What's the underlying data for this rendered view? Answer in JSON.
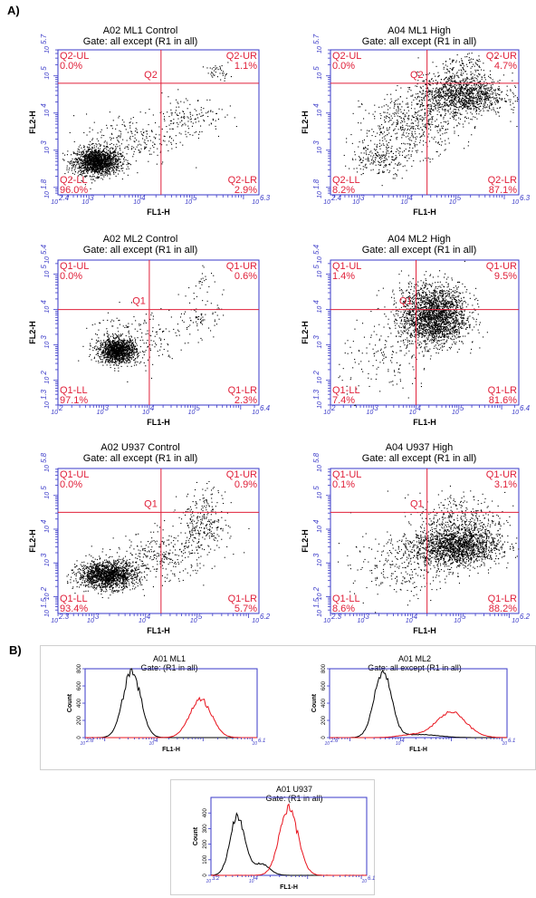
{
  "panel_a_label": "A)",
  "panel_b_label": "B)",
  "colors": {
    "axis": "#3a3ac8",
    "quadrant": "#e0203a",
    "dots": "#000000",
    "hist_red": "#e8141e",
    "hist_black": "#000000"
  },
  "chart_data": [
    {
      "type": "scatter",
      "id": "a02-ml1",
      "title": "A02 ML1 Control",
      "subtitle": "Gate: all except (R1 in all)",
      "xlabel": "FL1-H",
      "ylabel": "FL2-H",
      "xlim": [
        2.4,
        6.3
      ],
      "ylim": [
        1.8,
        5.7
      ],
      "x_ticks": [
        {
          "v": 2.4,
          "t": "2.4"
        },
        {
          "v": 3,
          "t": "3"
        },
        {
          "v": 4,
          "t": "4"
        },
        {
          "v": 5,
          "t": "5"
        },
        {
          "v": 6.3,
          "t": "6.3"
        }
      ],
      "y_ticks": [
        {
          "v": 1.8,
          "t": "1.8"
        },
        {
          "v": 3,
          "t": "3"
        },
        {
          "v": 4,
          "t": "4"
        },
        {
          "v": 5,
          "t": "5"
        },
        {
          "v": 5.7,
          "t": "5.7"
        }
      ],
      "gate": {
        "name": "Q2",
        "x": 4.4,
        "y": 4.8
      },
      "quadrants": {
        "UL": [
          "Q2-UL",
          "0.0%"
        ],
        "UR": [
          "Q2-UR",
          "1.1%"
        ],
        "LL": [
          "Q2-LL",
          "96.0%"
        ],
        "LR": [
          "Q2-LR",
          "2.9%"
        ]
      },
      "populations": [
        {
          "cx": 3.15,
          "cy": 2.7,
          "sx": 0.22,
          "sy": 0.18,
          "n": 1600
        },
        {
          "cx": 3.8,
          "cy": 3.3,
          "sx": 0.45,
          "sy": 0.35,
          "n": 220
        },
        {
          "cx": 4.9,
          "cy": 3.9,
          "sx": 0.35,
          "sy": 0.3,
          "n": 160
        },
        {
          "cx": 5.5,
          "cy": 5.1,
          "sx": 0.12,
          "sy": 0.1,
          "n": 40
        }
      ]
    },
    {
      "type": "scatter",
      "id": "a04-ml1",
      "title": "A04 ML1 High",
      "subtitle": "Gate: all except (R1 in all)",
      "xlabel": "FL1-H",
      "ylabel": "FL2-H",
      "xlim": [
        2.4,
        6.3
      ],
      "ylim": [
        1.8,
        5.7
      ],
      "x_ticks": [
        {
          "v": 2.4,
          "t": "2.4"
        },
        {
          "v": 3,
          "t": "3"
        },
        {
          "v": 4,
          "t": "4"
        },
        {
          "v": 5,
          "t": "5"
        },
        {
          "v": 6.3,
          "t": "6.3"
        }
      ],
      "y_ticks": [
        {
          "v": 1.8,
          "t": "1.8"
        },
        {
          "v": 3,
          "t": "3"
        },
        {
          "v": 4,
          "t": "4"
        },
        {
          "v": 5,
          "t": "5"
        },
        {
          "v": 5.7,
          "t": "5.7"
        }
      ],
      "gate": {
        "name": "Q2",
        "x": 4.4,
        "y": 4.8
      },
      "quadrants": {
        "UL": [
          "Q2-UL",
          "0.0%"
        ],
        "UR": [
          "Q2-UR",
          "4.7%"
        ],
        "LL": [
          "Q2-LL",
          "8.2%"
        ],
        "LR": [
          "Q2-LR",
          "87.1%"
        ]
      },
      "populations": [
        {
          "cx": 5.1,
          "cy": 4.5,
          "sx": 0.45,
          "sy": 0.28,
          "n": 1300
        },
        {
          "cx": 4.1,
          "cy": 3.7,
          "sx": 0.5,
          "sy": 0.4,
          "n": 500
        },
        {
          "cx": 3.4,
          "cy": 2.8,
          "sx": 0.3,
          "sy": 0.25,
          "n": 220
        },
        {
          "cx": 5.1,
          "cy": 5.3,
          "sx": 0.3,
          "sy": 0.15,
          "n": 90
        }
      ]
    },
    {
      "type": "scatter",
      "id": "a02-ml2",
      "title": "A02 ML2 Control",
      "subtitle": "Gate: all except (R1 in all)",
      "xlabel": "FL1-H",
      "ylabel": "FL2-H",
      "xlim": [
        2,
        6.4
      ],
      "ylim": [
        1.3,
        5.4
      ],
      "x_ticks": [
        {
          "v": 2,
          "t": "2"
        },
        {
          "v": 3,
          "t": "3"
        },
        {
          "v": 4,
          "t": "4"
        },
        {
          "v": 5,
          "t": "5"
        },
        {
          "v": 6.4,
          "t": "6.4"
        }
      ],
      "y_ticks": [
        {
          "v": 1.3,
          "t": "1.3"
        },
        {
          "v": 2,
          "t": "2"
        },
        {
          "v": 3,
          "t": "3"
        },
        {
          "v": 4,
          "t": "4"
        },
        {
          "v": 5,
          "t": "5"
        },
        {
          "v": 5.4,
          "t": "5.4"
        }
      ],
      "gate": {
        "name": "Q1",
        "x": 4.0,
        "y": 4.0
      },
      "quadrants": {
        "UL": [
          "Q1-UL",
          "0.0%"
        ],
        "UR": [
          "Q1-UR",
          "0.6%"
        ],
        "LL": [
          "Q1-LL",
          "97.1%"
        ],
        "LR": [
          "Q1-LR",
          "2.3%"
        ]
      },
      "populations": [
        {
          "cx": 3.3,
          "cy": 2.85,
          "sx": 0.2,
          "sy": 0.17,
          "n": 1300
        },
        {
          "cx": 3.7,
          "cy": 3.2,
          "sx": 0.55,
          "sy": 0.45,
          "n": 200
        },
        {
          "cx": 5.1,
          "cy": 3.8,
          "sx": 0.2,
          "sy": 0.2,
          "n": 70
        },
        {
          "cx": 5.2,
          "cy": 4.8,
          "sx": 0.2,
          "sy": 0.2,
          "n": 25
        }
      ]
    },
    {
      "type": "scatter",
      "id": "a04-ml2",
      "title": "A04 ML2 High",
      "subtitle": "Gate: all except (R1 in all)",
      "xlabel": "FL1-H",
      "ylabel": "FL2-H",
      "xlim": [
        2,
        6.4
      ],
      "ylim": [
        1.3,
        5.4
      ],
      "x_ticks": [
        {
          "v": 2,
          "t": "2"
        },
        {
          "v": 3,
          "t": "3"
        },
        {
          "v": 4,
          "t": "4"
        },
        {
          "v": 5,
          "t": "5"
        },
        {
          "v": 6.4,
          "t": "6.4"
        }
      ],
      "y_ticks": [
        {
          "v": 1.3,
          "t": "1.3"
        },
        {
          "v": 2,
          "t": "2"
        },
        {
          "v": 3,
          "t": "3"
        },
        {
          "v": 4,
          "t": "4"
        },
        {
          "v": 5,
          "t": "5"
        },
        {
          "v": 5.4,
          "t": "5.4"
        }
      ],
      "gate": {
        "name": "Q1",
        "x": 4.0,
        "y": 4.0
      },
      "quadrants": {
        "UL": [
          "Q1-UL",
          "1.4%"
        ],
        "UR": [
          "Q1-UR",
          "9.5%"
        ],
        "LL": [
          "Q1-LL",
          "7.4%"
        ],
        "LR": [
          "Q1-LR",
          "81.6%"
        ]
      },
      "populations": [
        {
          "cx": 4.4,
          "cy": 3.75,
          "sx": 0.38,
          "sy": 0.38,
          "n": 1900
        },
        {
          "cx": 4.4,
          "cy": 4.35,
          "sx": 0.4,
          "sy": 0.3,
          "n": 350
        },
        {
          "cx": 3.3,
          "cy": 2.6,
          "sx": 0.55,
          "sy": 0.55,
          "n": 160
        }
      ]
    },
    {
      "type": "scatter",
      "id": "a02-u937",
      "title": "A02 U937 Control",
      "subtitle": "Gate: all except (R1 in all)",
      "xlabel": "FL1-H",
      "ylabel": "FL2-H",
      "xlim": [
        2.3,
        6.2
      ],
      "ylim": [
        1.5,
        5.8
      ],
      "x_ticks": [
        {
          "v": 2.3,
          "t": "2.3"
        },
        {
          "v": 3,
          "t": "3"
        },
        {
          "v": 4,
          "t": "4"
        },
        {
          "v": 5,
          "t": "5"
        },
        {
          "v": 6.2,
          "t": "6.2"
        }
      ],
      "y_ticks": [
        {
          "v": 1.5,
          "t": "1.5"
        },
        {
          "v": 2,
          "t": "2"
        },
        {
          "v": 3,
          "t": "3"
        },
        {
          "v": 4,
          "t": "4"
        },
        {
          "v": 5,
          "t": "5"
        },
        {
          "v": 5.8,
          "t": "5.8"
        }
      ],
      "gate": {
        "name": "Q1",
        "x": 4.3,
        "y": 4.5
      },
      "quadrants": {
        "UL": [
          "Q1-UL",
          "0.0%"
        ],
        "UR": [
          "Q1-UR",
          "0.9%"
        ],
        "LL": [
          "Q1-LL",
          "93.4%"
        ],
        "LR": [
          "Q1-LR",
          "5.7%"
        ]
      },
      "populations": [
        {
          "cx": 3.25,
          "cy": 2.65,
          "sx": 0.28,
          "sy": 0.2,
          "n": 1600
        },
        {
          "cx": 4.3,
          "cy": 3.2,
          "sx": 0.45,
          "sy": 0.35,
          "n": 300
        },
        {
          "cx": 5.1,
          "cy": 4.0,
          "sx": 0.25,
          "sy": 0.35,
          "n": 220
        },
        {
          "cx": 5.2,
          "cy": 4.9,
          "sx": 0.2,
          "sy": 0.3,
          "n": 60
        }
      ]
    },
    {
      "type": "scatter",
      "id": "a04-u937",
      "title": "A04 U937 High",
      "subtitle": "Gate: all except (R1 in all)",
      "xlabel": "FL1-H",
      "ylabel": "FL2-H",
      "xlim": [
        2.3,
        6.2
      ],
      "ylim": [
        1.5,
        5.8
      ],
      "x_ticks": [
        {
          "v": 2.3,
          "t": "2.3"
        },
        {
          "v": 3,
          "t": "3"
        },
        {
          "v": 4,
          "t": "4"
        },
        {
          "v": 5,
          "t": "5"
        },
        {
          "v": 6.2,
          "t": "6.2"
        }
      ],
      "y_ticks": [
        {
          "v": 1.5,
          "t": "1.5"
        },
        {
          "v": 2,
          "t": "2"
        },
        {
          "v": 3,
          "t": "3"
        },
        {
          "v": 4,
          "t": "4"
        },
        {
          "v": 5,
          "t": "5"
        },
        {
          "v": 5.8,
          "t": "5.8"
        }
      ],
      "gate": {
        "name": "Q1",
        "x": 4.3,
        "y": 4.5
      },
      "quadrants": {
        "UL": [
          "Q1-UL",
          "0.1%"
        ],
        "UR": [
          "Q1-UR",
          "3.1%"
        ],
        "LL": [
          "Q1-LL",
          "8.6%"
        ],
        "LR": [
          "Q1-LR",
          "88.2%"
        ]
      },
      "populations": [
        {
          "cx": 4.9,
          "cy": 3.5,
          "sx": 0.45,
          "sy": 0.28,
          "n": 1700
        },
        {
          "cx": 5.0,
          "cy": 4.3,
          "sx": 0.45,
          "sy": 0.4,
          "n": 350
        },
        {
          "cx": 3.8,
          "cy": 2.9,
          "sx": 0.55,
          "sy": 0.45,
          "n": 280
        }
      ]
    },
    {
      "type": "line",
      "id": "a01-ml1",
      "title": "A01 ML1",
      "subtitle": "Gate: (R1 in all)",
      "xlabel": "FL1-H",
      "ylabel": "Count",
      "xlim": [
        2.6,
        6.1
      ],
      "ylim": [
        0,
        800
      ],
      "x_ticks": [
        {
          "v": 2.6,
          "t": "2.6"
        },
        {
          "v": 4,
          "t": "4"
        },
        {
          "v": 6.1,
          "t": "6.1"
        }
      ],
      "y_ticks": [
        {
          "v": 0,
          "t": "0"
        },
        {
          "v": 200,
          "t": "200"
        },
        {
          "v": 400,
          "t": "400"
        },
        {
          "v": 600,
          "t": "600"
        },
        {
          "v": 800,
          "t": "800"
        }
      ],
      "series": [
        {
          "color": "#000000",
          "peaks": [
            {
              "mu": 3.55,
              "sd": 0.18,
              "h": 760
            }
          ]
        },
        {
          "color": "#e8141e",
          "peaks": [
            {
              "mu": 4.95,
              "sd": 0.22,
              "h": 440
            }
          ]
        }
      ]
    },
    {
      "type": "line",
      "id": "a01-ml2",
      "title": "A01 ML2",
      "subtitle": "Gate: all except (R1 in all)",
      "xlabel": "FL1-H",
      "ylabel": "Count",
      "xlim": [
        2.6,
        6.1
      ],
      "ylim": [
        0,
        800
      ],
      "x_ticks": [
        {
          "v": 2.6,
          "t": "2.6"
        },
        {
          "v": 4,
          "t": "4"
        },
        {
          "v": 6.1,
          "t": "6.1"
        }
      ],
      "y_ticks": [
        {
          "v": 0,
          "t": "0"
        },
        {
          "v": 200,
          "t": "200"
        },
        {
          "v": 400,
          "t": "400"
        },
        {
          "v": 600,
          "t": "600"
        },
        {
          "v": 800,
          "t": "800"
        }
      ],
      "series": [
        {
          "color": "#000000",
          "peaks": [
            {
              "mu": 3.65,
              "sd": 0.17,
              "h": 760
            },
            {
              "mu": 4.4,
              "sd": 0.35,
              "h": 35
            }
          ]
        },
        {
          "color": "#e8141e",
          "peaks": [
            {
              "mu": 5.0,
              "sd": 0.3,
              "h": 290
            },
            {
              "mu": 4.2,
              "sd": 0.25,
              "h": 30
            }
          ]
        }
      ]
    },
    {
      "type": "line",
      "id": "a01-u937",
      "title": "A01 U937",
      "subtitle": "Gate: (R1 in all)",
      "xlabel": "FL1-H",
      "ylabel": "Count",
      "xlim": [
        3.2,
        6.1
      ],
      "ylim": [
        0,
        500
      ],
      "x_ticks": [
        {
          "v": 3.2,
          "t": "3.2"
        },
        {
          "v": 4,
          "t": "4"
        },
        {
          "v": 6.1,
          "t": "6.1"
        }
      ],
      "y_ticks": [
        {
          "v": 0,
          "t": "0"
        },
        {
          "v": 100,
          "t": "100"
        },
        {
          "v": 200,
          "t": "200"
        },
        {
          "v": 300,
          "t": "300"
        },
        {
          "v": 400,
          "t": "400"
        }
      ],
      "series": [
        {
          "color": "#000000",
          "peaks": [
            {
              "mu": 3.7,
              "sd": 0.14,
              "h": 370
            },
            {
              "mu": 4.15,
              "sd": 0.15,
              "h": 70
            }
          ]
        },
        {
          "color": "#e8141e",
          "peaks": [
            {
              "mu": 4.65,
              "sd": 0.17,
              "h": 440
            }
          ]
        }
      ]
    }
  ]
}
